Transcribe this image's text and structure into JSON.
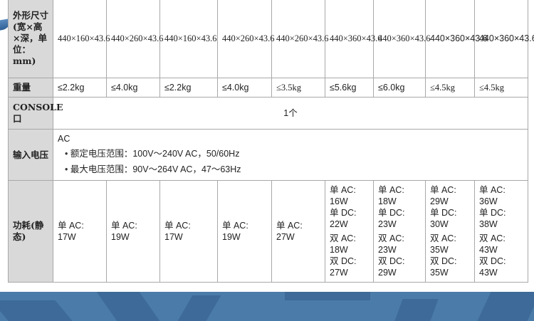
{
  "rows": {
    "size": {
      "label": "外形尺寸(宽×高×深，单位：mm)",
      "values": [
        "440×160×43.6",
        "440×260×43.6",
        "440×160×43.6",
        "440×260×43.6",
        "440×260×43.6",
        "440×360×43.6",
        "440×360×43.6",
        "440×360×43.6",
        "440×360×43.6"
      ]
    },
    "weight": {
      "label": "重量",
      "values": [
        "≤2.2kg",
        "≤4.0kg",
        "≤2.2kg",
        "≤4.0kg",
        "≤3.5kg",
        "≤5.6kg",
        "≤6.0kg",
        "≤4.5kg",
        "≤4.5kg"
      ]
    },
    "console": {
      "label": "CONSOLE口",
      "value": "1个"
    },
    "voltage": {
      "label": "输入电压",
      "type": "AC",
      "items": [
        "额定电压范围：100V～240V AC，50/60Hz",
        "最大电压范围：90V～264V AC，47～63Hz"
      ]
    },
    "power": {
      "label": "功耗(静态)",
      "single": [
        [
          "单 AC:",
          "17W"
        ],
        [
          "单 AC:",
          "19W"
        ],
        [
          "单 AC:",
          "17W"
        ],
        [
          "单 AC:",
          "19W"
        ],
        [
          "单 AC:",
          "27W"
        ]
      ],
      "multi": [
        [
          "单 AC:",
          "16W",
          "单 DC:",
          "22W",
          "双 AC:",
          "18W",
          "双 DC:",
          "27W"
        ],
        [
          "单 AC:",
          "18W",
          "单 DC:",
          "23W",
          "双 AC:",
          "23W",
          "双 DC:",
          "29W"
        ],
        [
          "单 AC:",
          "29W",
          "单 DC:",
          "30W",
          "双 AC:",
          "35W",
          "双 DC:",
          "35W"
        ],
        [
          "单 AC:",
          "36W",
          "单 DC:",
          "38W",
          "双 AC:",
          "43W",
          "双 DC:",
          "43W"
        ]
      ]
    }
  }
}
